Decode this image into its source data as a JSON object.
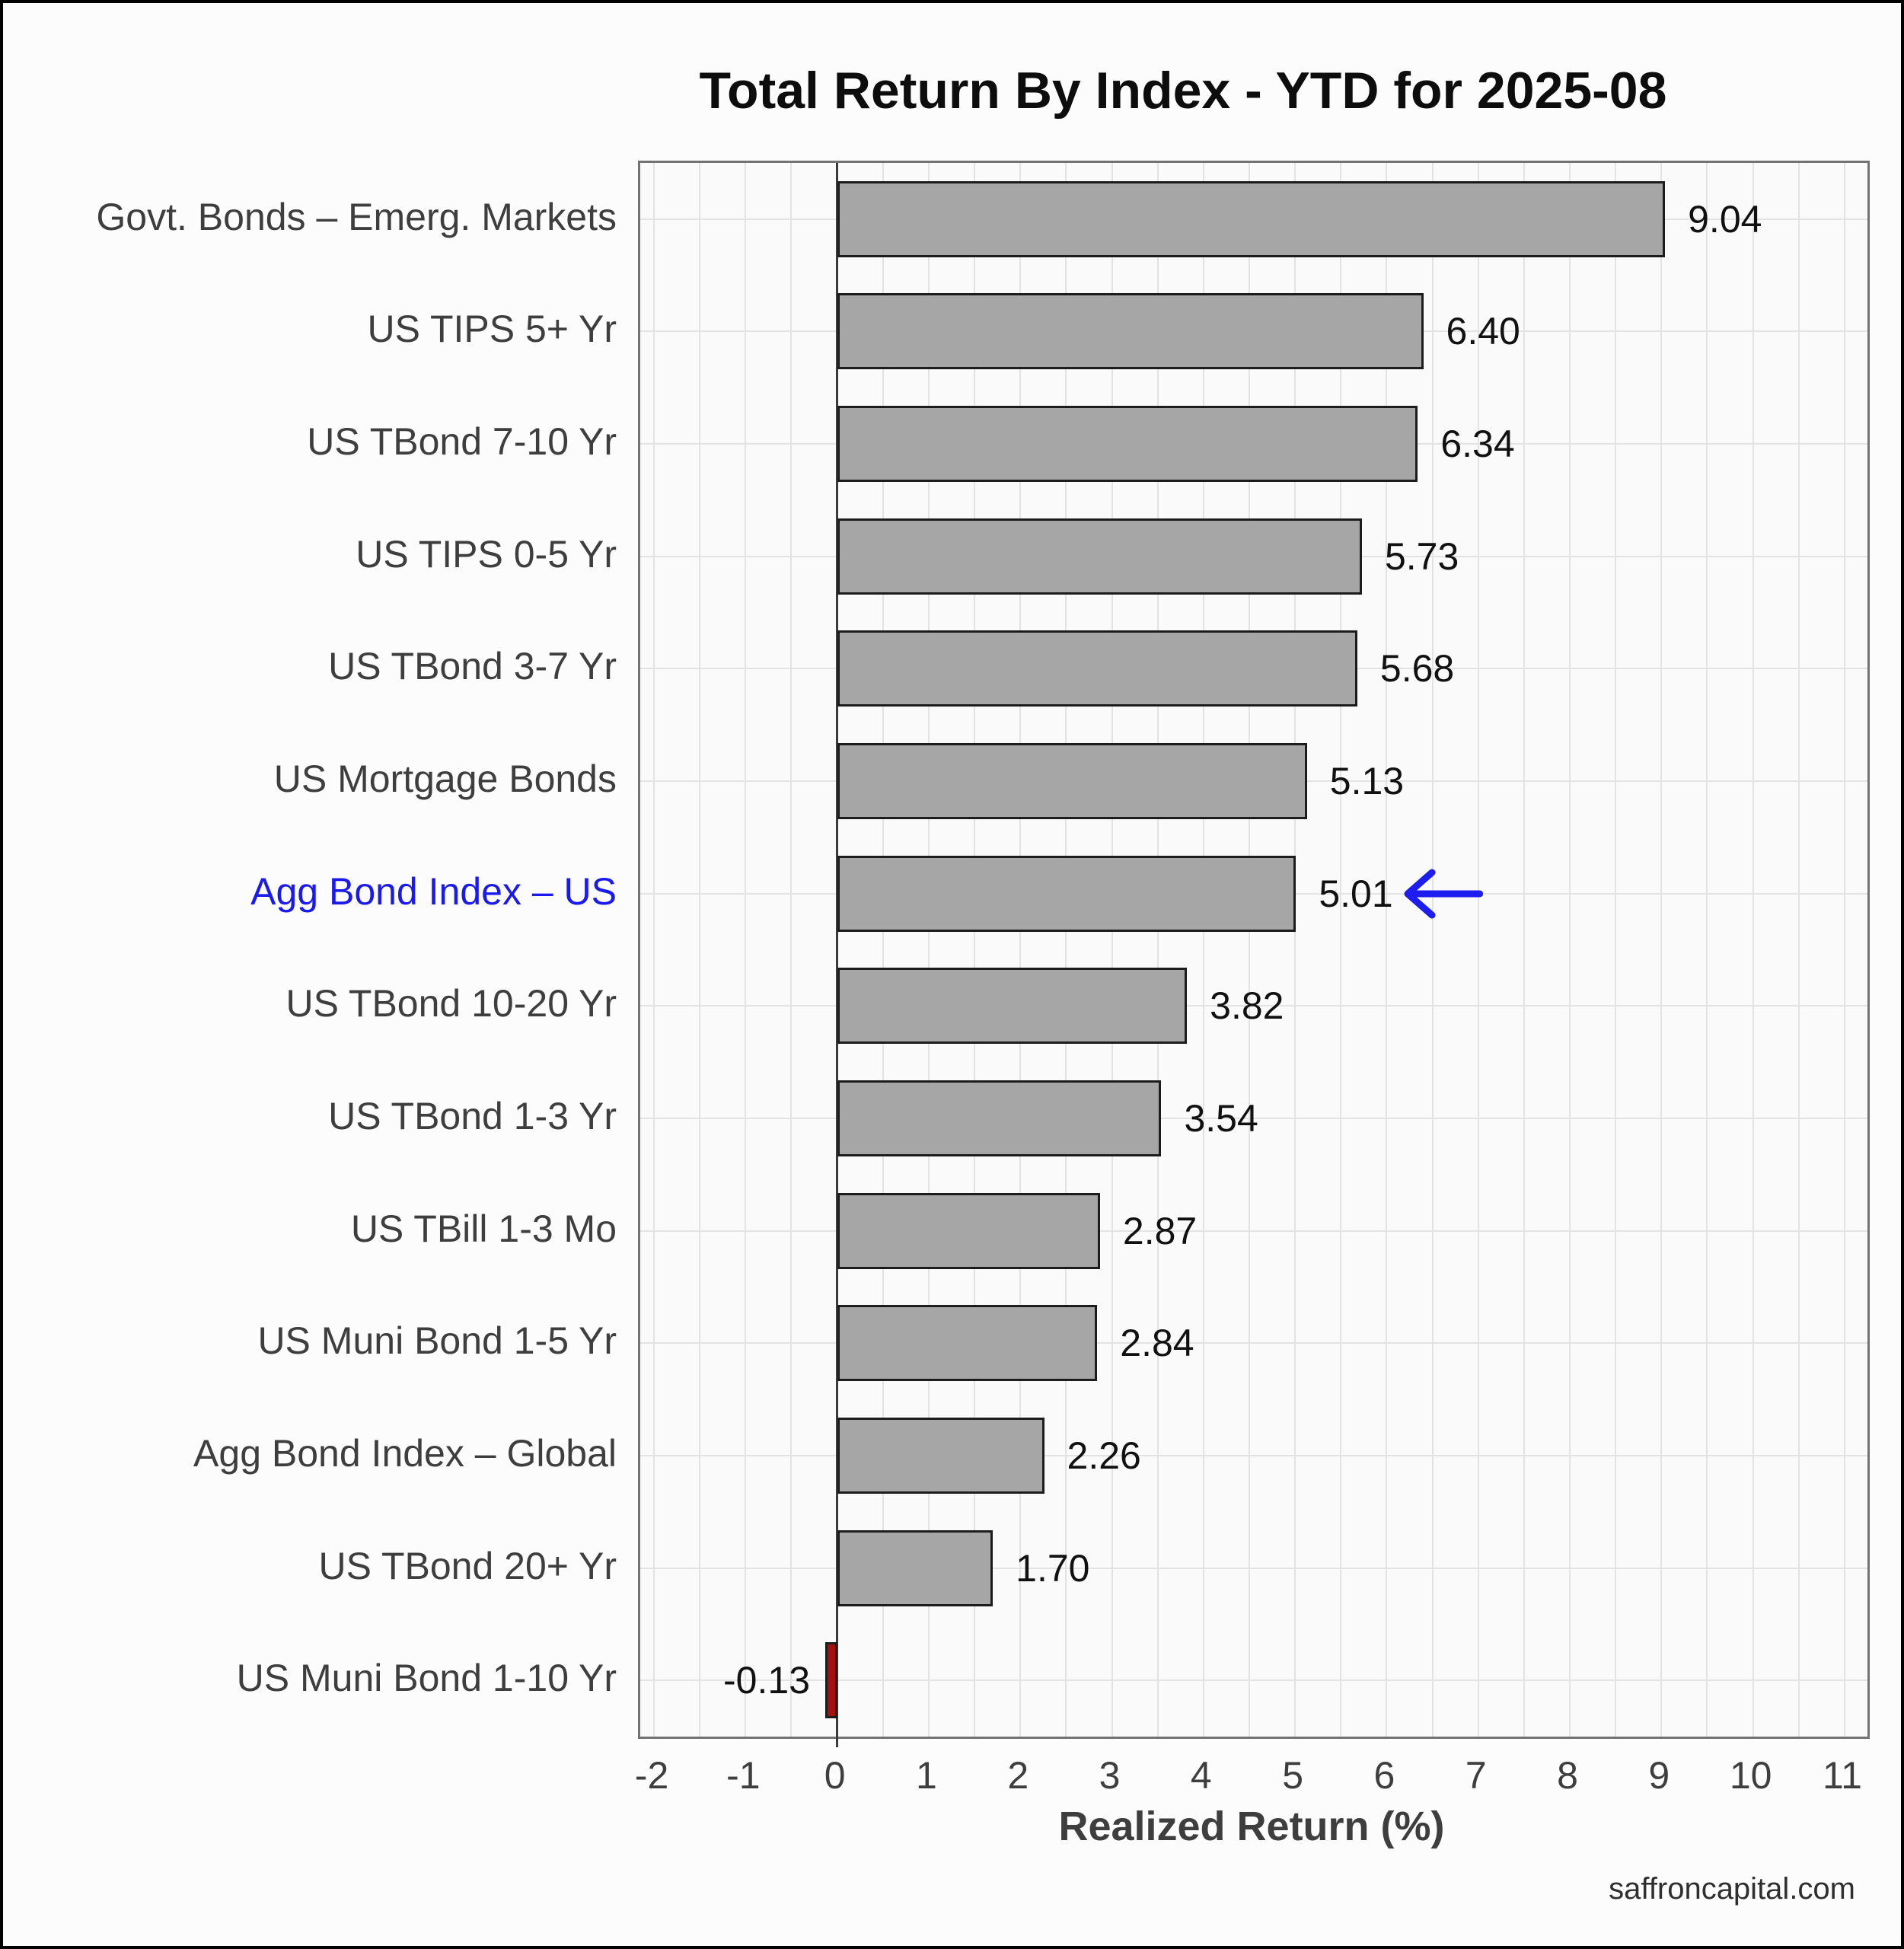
{
  "title": "Total Return By Index - YTD for 2025-08",
  "footer": "saffroncapital.com",
  "x_axis_title": "Realized Return (%)",
  "chart_data": {
    "type": "bar",
    "orientation": "horizontal",
    "title": "Total Return By Index - YTD for 2025-08",
    "xlabel": "Realized Return (%)",
    "categories": [
      "Govt. Bonds – Emerg. Markets",
      "US TIPS 5+ Yr",
      "US TBond 7-10 Yr",
      "US TIPS 0-5 Yr",
      "US TBond 3-7 Yr",
      "US Mortgage Bonds",
      "Agg Bond Index – US",
      "US TBond 10-20 Yr",
      "US TBond 1-3 Yr",
      "US TBill 1-3 Mo",
      "US Muni Bond 1-5 Yr",
      "Agg Bond Index – Global",
      "US TBond 20+ Yr",
      "US Muni Bond 1-10 Yr"
    ],
    "values": [
      9.04,
      6.4,
      6.34,
      5.73,
      5.68,
      5.13,
      5.01,
      3.82,
      3.54,
      2.87,
      2.84,
      2.26,
      1.7,
      -0.13
    ],
    "value_labels": [
      "9.04",
      "6.40",
      "6.34",
      "5.73",
      "5.68",
      "5.13",
      "5.01",
      "3.82",
      "3.54",
      "2.87",
      "2.84",
      "2.26",
      "1.70",
      "-0.13"
    ],
    "xticks": [
      -2,
      -1,
      0,
      1,
      2,
      3,
      4,
      5,
      6,
      7,
      8,
      9,
      10,
      11
    ],
    "xlim": [
      -2.15,
      11.25
    ],
    "grid": {
      "vertical_interval": 0.5,
      "horizontal": "row-centers",
      "on": true
    },
    "legend": "none",
    "highlight": {
      "index": 6,
      "category": "Agg Bond Index – US",
      "label_color": "#1a1aee",
      "marker": "left-arrow",
      "arrow_color": "#1d1df0",
      "arrow_x_start": 7.05,
      "arrow_x_end": 6.18
    },
    "colors": {
      "bar_fill": "#a6a6a6",
      "bar_edge": "#1c1c1c",
      "negative_bar_fill": "#a50f0f",
      "grid": "#e3e3e3",
      "zero_line": "#3b3b3b",
      "plot_border": "#737373",
      "figure_background": "#fcfcfc",
      "plot_background": "#fafafa",
      "category_text": "#3e3e3e",
      "value_text": "#111111"
    }
  }
}
